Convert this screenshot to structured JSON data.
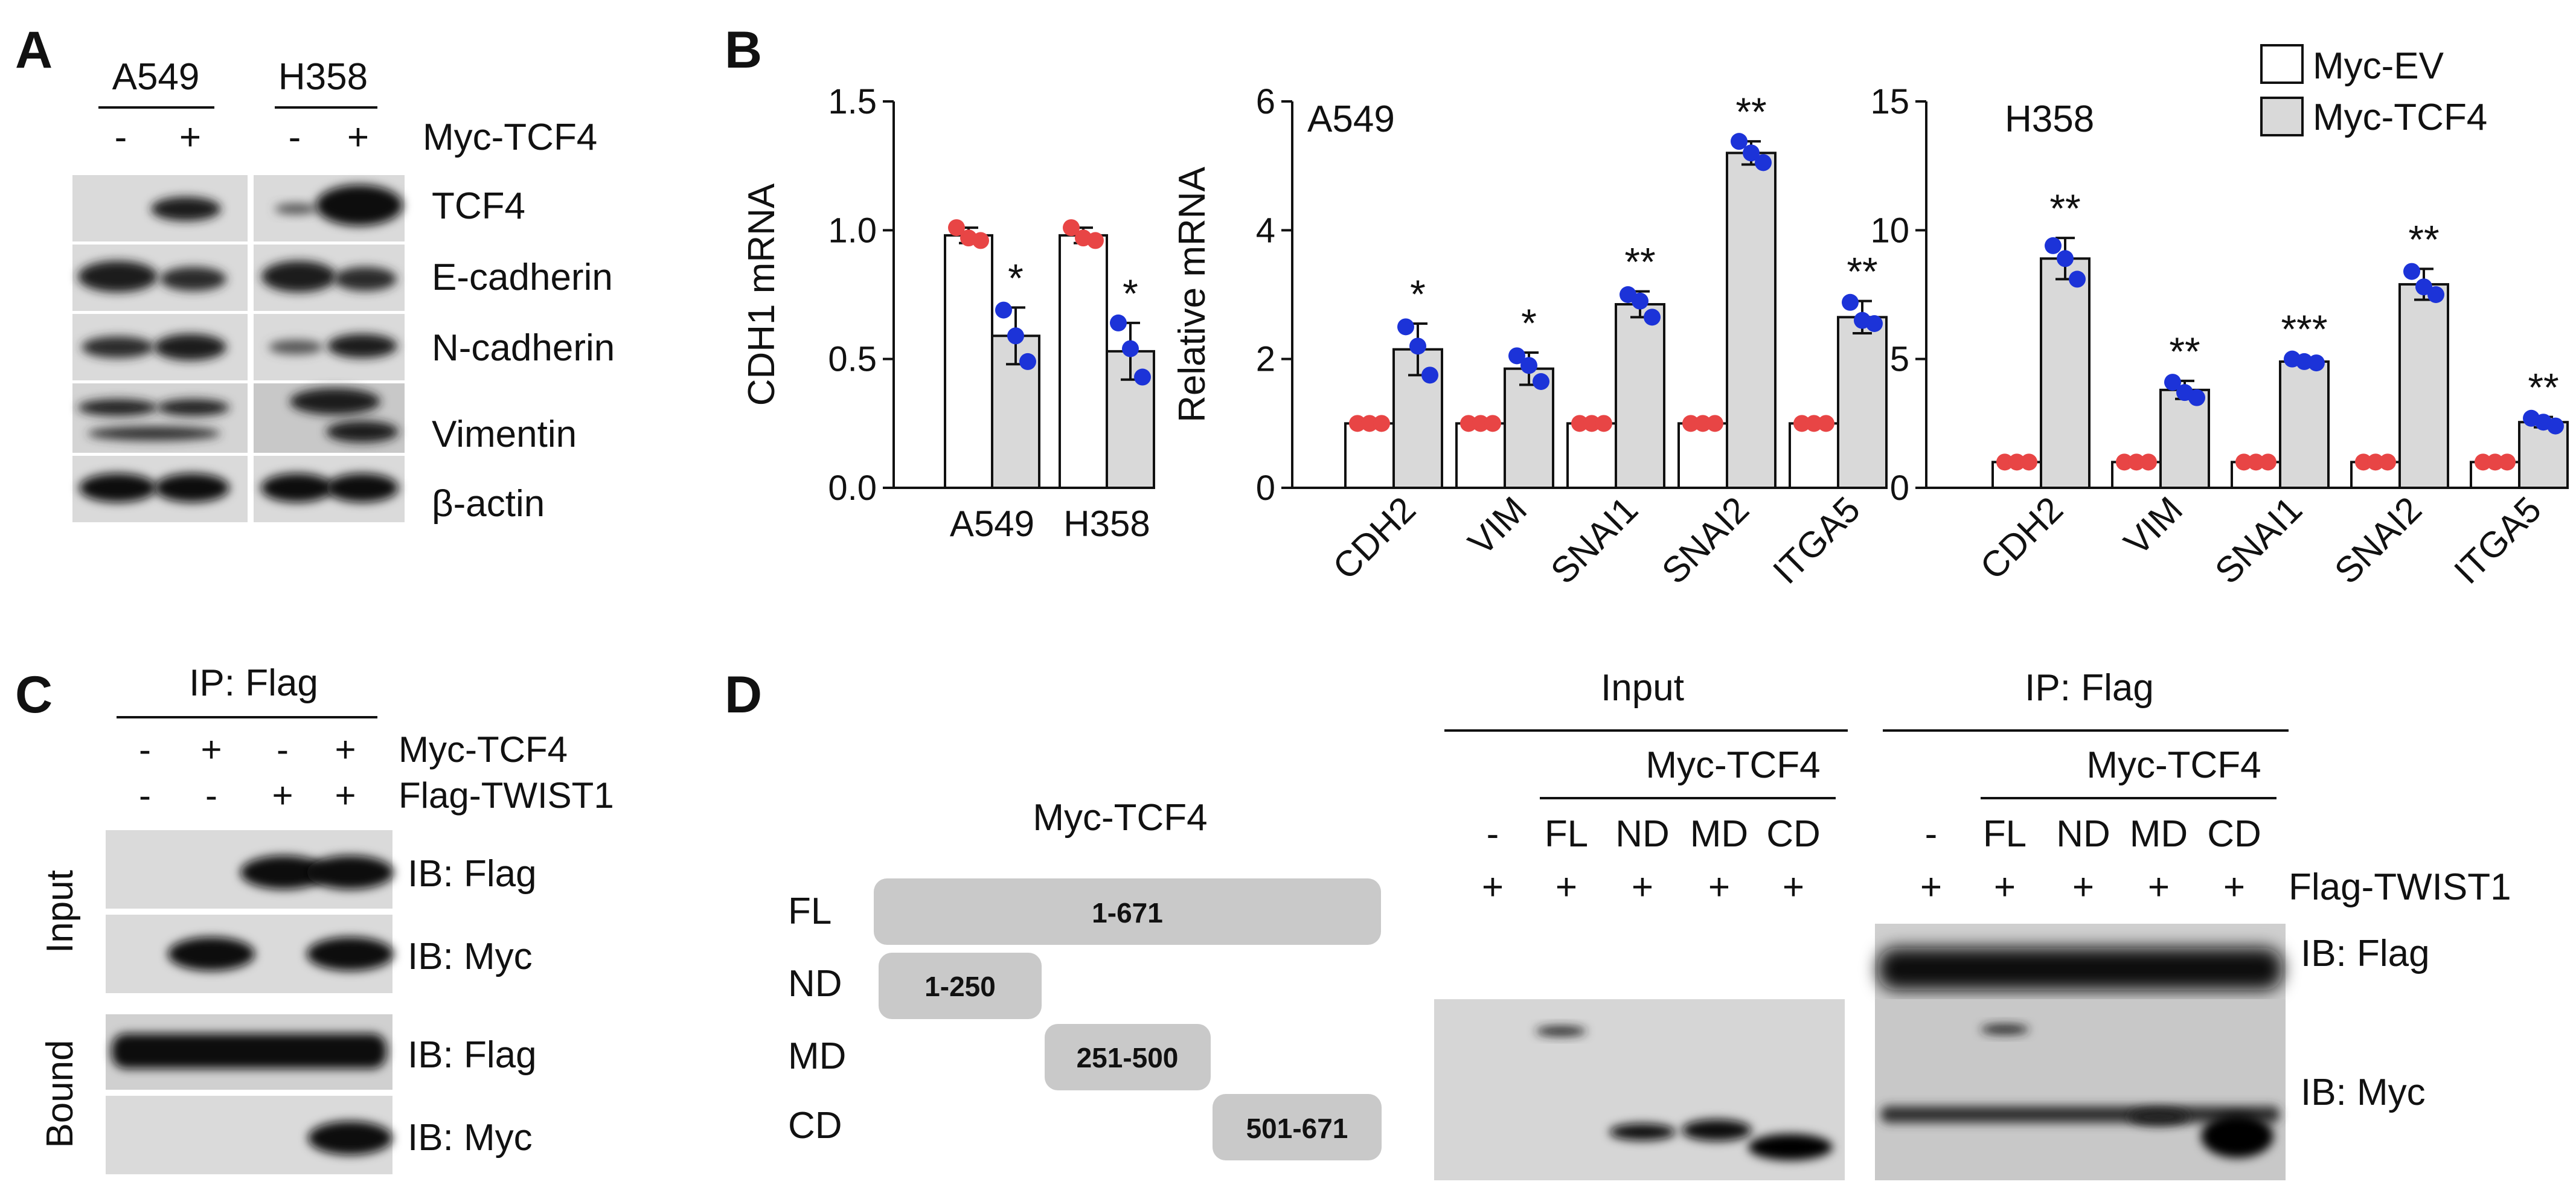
{
  "colors": {
    "ev_fill": "#ffffff",
    "tcf4_fill": "#d9d9d9",
    "ev_dot": "#e84545",
    "tcf4_dot": "#1c33d8",
    "blot_bg": "#d6d6d6",
    "domain_box": "#c9c9c9"
  },
  "panels": {
    "A": {
      "letter": "A",
      "cell_lines": [
        "A549",
        "H358"
      ],
      "lane_signs": [
        "-",
        "+",
        "-",
        "+"
      ],
      "condition_label": "Myc-TCF4",
      "rows": [
        "TCF4",
        "E-cadherin",
        "N-cadherin",
        "Vimentin",
        "β-actin"
      ]
    },
    "B": {
      "letter": "B"
    },
    "C": {
      "letter": "C",
      "ip_label": "IP: Flag",
      "myc_label": "Myc-TCF4",
      "flag_label": "Flag-TWIST1",
      "myc_signs": [
        "-",
        "+",
        "-",
        "+"
      ],
      "flag_signs": [
        "-",
        "-",
        "+",
        "+"
      ],
      "group_labels": [
        "Input",
        "Bound"
      ],
      "ib_labels": [
        "IB: Flag",
        "IB: Myc",
        "IB: Flag",
        "IB: Myc"
      ]
    },
    "D": {
      "letter": "D",
      "construct_title": "Myc-TCF4",
      "constructs": [
        {
          "name": "FL",
          "range": "1-671"
        },
        {
          "name": "ND",
          "range": "1-250"
        },
        {
          "name": "MD",
          "range": "251-500"
        },
        {
          "name": "CD",
          "range": "501-671"
        }
      ],
      "input_label": "Input",
      "ip_label": "IP: Flag",
      "myc_label": "Myc-TCF4",
      "lane_labels": [
        "-",
        "FL",
        "ND",
        "MD",
        "CD"
      ],
      "plus_signs": [
        "+",
        "+",
        "+",
        "+",
        "+"
      ],
      "flag_label": "Flag-TWIST1",
      "ib_labels": [
        "IB: Flag",
        "IB: Myc"
      ]
    }
  },
  "chart_data": [
    {
      "type": "bar",
      "title": "",
      "ylabel": "CDH1 mRNA",
      "xlabel": "",
      "ylim": [
        0,
        1.5
      ],
      "yticks": [
        "0.0",
        "0.5",
        "1.0",
        "1.5"
      ],
      "categories": [
        "A549",
        "H358"
      ],
      "series": [
        {
          "name": "Myc-EV",
          "values": [
            0.98,
            0.98
          ],
          "errors": [
            0.03,
            0.03
          ],
          "points": [
            [
              1.01,
              0.97,
              0.96
            ],
            [
              1.01,
              0.97,
              0.96
            ]
          ]
        },
        {
          "name": "Myc-TCF4",
          "values": [
            0.59,
            0.53
          ],
          "errors": [
            0.11,
            0.11
          ],
          "points": [
            [
              0.69,
              0.59,
              0.49
            ],
            [
              0.64,
              0.54,
              0.43
            ]
          ]
        }
      ],
      "significance": [
        "*",
        "*"
      ]
    },
    {
      "type": "bar",
      "title": "A549",
      "ylabel": "Relative mRNA",
      "xlabel": "",
      "ylim": [
        0,
        6
      ],
      "yticks": [
        "0",
        "2",
        "4",
        "6"
      ],
      "categories": [
        "CDH2",
        "VIM",
        "SNAI1",
        "SNAI2",
        "ITGA5"
      ],
      "series": [
        {
          "name": "Myc-EV",
          "values": [
            1,
            1,
            1,
            1,
            1
          ],
          "errors": [
            0.03,
            0.03,
            0.03,
            0.03,
            0.03
          ],
          "points": [
            [
              1,
              1,
              1
            ],
            [
              1,
              1,
              1
            ],
            [
              1,
              1,
              1
            ],
            [
              1,
              1,
              1
            ],
            [
              1,
              1,
              1
            ]
          ]
        },
        {
          "name": "Myc-TCF4",
          "values": [
            2.15,
            1.85,
            2.85,
            5.2,
            2.65
          ],
          "errors": [
            0.4,
            0.25,
            0.2,
            0.18,
            0.25
          ],
          "points": [
            [
              2.5,
              2.2,
              1.75
            ],
            [
              2.05,
              1.9,
              1.65
            ],
            [
              3.0,
              2.9,
              2.65
            ],
            [
              5.38,
              5.2,
              5.05
            ],
            [
              2.88,
              2.6,
              2.55
            ]
          ]
        }
      ],
      "significance": [
        "*",
        "*",
        "**",
        "**",
        "**"
      ]
    },
    {
      "type": "bar",
      "title": "H358",
      "ylabel": "",
      "xlabel": "",
      "ylim": [
        0,
        15
      ],
      "yticks": [
        "0",
        "5",
        "10",
        "15"
      ],
      "categories": [
        "CDH2",
        "VIM",
        "SNAI1",
        "SNAI2",
        "ITGA5"
      ],
      "series": [
        {
          "name": "Myc-EV",
          "values": [
            1,
            1,
            1,
            1,
            1
          ],
          "errors": [
            0.05,
            0.05,
            0.05,
            0.05,
            0.05
          ],
          "points": [
            [
              1,
              1,
              1
            ],
            [
              1,
              1,
              1
            ],
            [
              1,
              1,
              1
            ],
            [
              1,
              1,
              1
            ],
            [
              1,
              1,
              1
            ]
          ]
        },
        {
          "name": "Myc-TCF4",
          "values": [
            8.9,
            3.8,
            4.9,
            7.9,
            2.55
          ],
          "errors": [
            0.8,
            0.35,
            0.12,
            0.6,
            0.2
          ],
          "points": [
            [
              9.4,
              8.9,
              8.1
            ],
            [
              4.1,
              3.7,
              3.5
            ],
            [
              5.0,
              4.9,
              4.85
            ],
            [
              8.4,
              7.8,
              7.5
            ],
            [
              2.7,
              2.55,
              2.4
            ]
          ]
        }
      ],
      "significance": [
        "**",
        "**",
        "***",
        "**",
        "**"
      ]
    }
  ],
  "legend": {
    "items": [
      "Myc-EV",
      "Myc-TCF4"
    ],
    "placement": "top-right"
  }
}
